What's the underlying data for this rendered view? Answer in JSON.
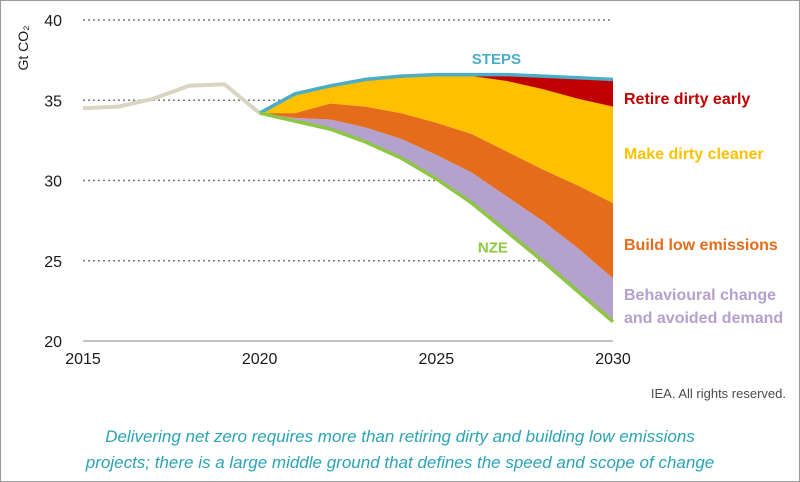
{
  "chart_data": {
    "type": "area",
    "ylabel": "Gt CO₂",
    "xlim": [
      2015,
      2030
    ],
    "ylim": [
      20,
      40
    ],
    "x_ticks": [
      2015,
      2020,
      2025,
      2030
    ],
    "y_ticks": [
      20,
      25,
      30,
      35,
      40
    ],
    "grid": "horizontal dotted",
    "historical": {
      "x": [
        2015,
        2016,
        2017,
        2018,
        2019,
        2020
      ],
      "y": [
        34.5,
        34.6,
        35.1,
        35.9,
        36.0,
        34.2
      ],
      "color": "#d9d4c4"
    },
    "x": [
      2020,
      2021,
      2022,
      2023,
      2024,
      2025,
      2026,
      2027,
      2028,
      2029,
      2030
    ],
    "lines": [
      {
        "name": "STEPS",
        "color": "#4badc8",
        "values": [
          34.2,
          35.4,
          35.9,
          36.3,
          36.5,
          36.6,
          36.6,
          36.6,
          36.5,
          36.4,
          36.3
        ]
      },
      {
        "name": "NZE",
        "color": "#8dc641",
        "values": [
          34.2,
          33.7,
          33.2,
          32.4,
          31.4,
          30.1,
          28.6,
          26.8,
          25.0,
          23.1,
          21.2
        ]
      }
    ],
    "bands": [
      {
        "name": "Behavioural change and avoided demand",
        "color": "#b4a1cd",
        "lower": [
          34.2,
          33.7,
          33.2,
          32.4,
          31.4,
          30.1,
          28.6,
          26.8,
          25.0,
          23.1,
          21.2
        ],
        "upper": [
          34.2,
          33.9,
          33.8,
          33.3,
          32.6,
          31.6,
          30.5,
          29.0,
          27.5,
          25.8,
          23.9
        ]
      },
      {
        "name": "Build low emissions",
        "color": "#e46c1b",
        "lower": [
          34.2,
          33.9,
          33.8,
          33.3,
          32.6,
          31.6,
          30.5,
          29.0,
          27.5,
          25.8,
          23.9
        ],
        "upper": [
          34.2,
          34.2,
          34.8,
          34.6,
          34.2,
          33.6,
          32.9,
          31.8,
          30.7,
          29.7,
          28.6
        ]
      },
      {
        "name": "Make dirty cleaner",
        "color": "#ffc000",
        "lower": [
          34.2,
          34.2,
          34.8,
          34.6,
          34.2,
          33.6,
          32.9,
          31.8,
          30.7,
          29.7,
          28.6
        ],
        "upper": [
          34.2,
          35.3,
          35.8,
          36.2,
          36.4,
          36.5,
          36.5,
          36.2,
          35.7,
          35.1,
          34.6
        ]
      },
      {
        "name": "Retire dirty early",
        "color": "#c00000",
        "lower": [
          34.2,
          35.3,
          35.8,
          36.2,
          36.4,
          36.5,
          36.5,
          36.2,
          35.7,
          35.1,
          34.6
        ],
        "upper": [
          34.2,
          35.4,
          35.9,
          36.3,
          36.5,
          36.6,
          36.6,
          36.6,
          36.5,
          36.4,
          36.3
        ]
      }
    ],
    "category_labels": [
      {
        "text": "Retire dirty early",
        "color": "#c00000"
      },
      {
        "text": "Make dirty cleaner",
        "color": "#ffc000"
      },
      {
        "text": "Build low emissions",
        "color": "#e46c1b"
      },
      {
        "lines": [
          "Behavioural change",
          "and avoided demand"
        ],
        "color": "#b4a1cd"
      }
    ]
  },
  "rights": "IEA. All rights reserved.",
  "caption": {
    "line1": "Delivering net zero requires more than retiring dirty and building low emissions",
    "line2": "projects; there is a large middle ground that defines the speed and scope of change"
  }
}
